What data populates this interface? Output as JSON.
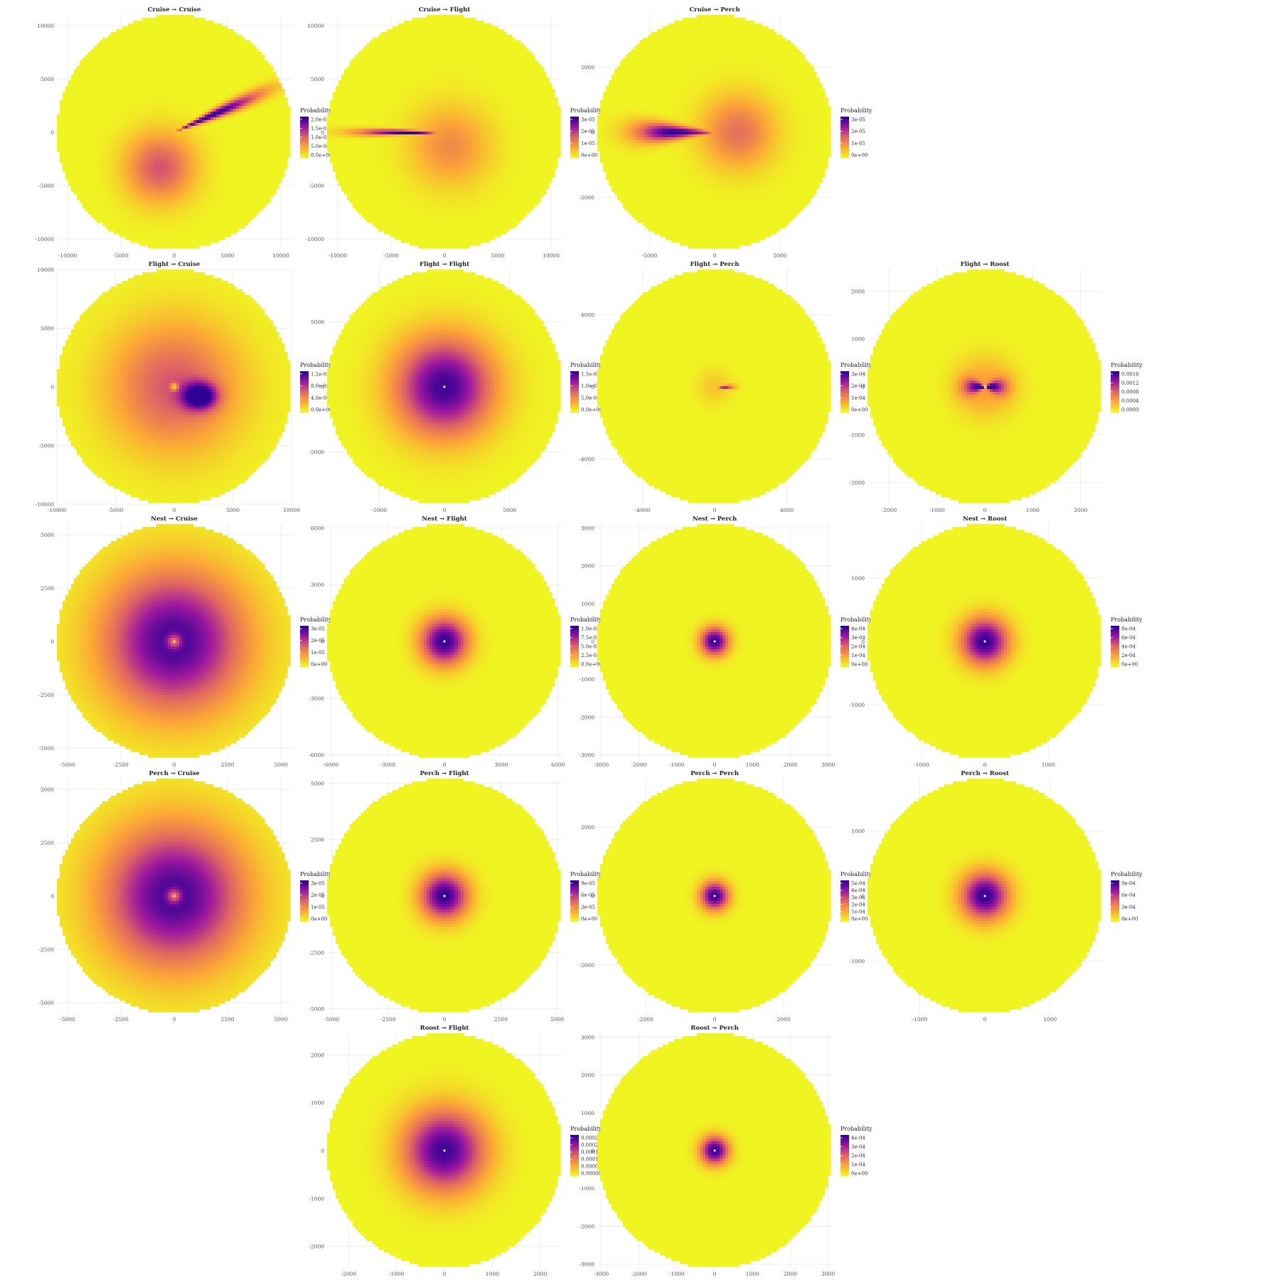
{
  "legend_title": "Probability",
  "chart_data": [
    {
      "type": "heatmap",
      "title": "Cruise → Cruise",
      "row": 0,
      "col": 0,
      "xticks": [
        "-10000",
        "-5000",
        "0",
        "5000",
        "10000"
      ],
      "yticks": [
        "10000",
        "5000",
        "0",
        "-5000",
        "-10000"
      ],
      "xlim": [
        -11000,
        11000
      ],
      "ylim": [
        -11000,
        11000
      ],
      "radius": 11000,
      "legend_ticks": [
        "2.0e-05",
        "1.5e-05",
        "1.0e-05",
        "5.0e-06",
        "0.0e+00"
      ],
      "pattern": "cruise_cruise"
    },
    {
      "type": "heatmap",
      "title": "Cruise → Flight",
      "row": 0,
      "col": 1,
      "xticks": [
        "-10000",
        "-5000",
        "0",
        "5000",
        "10000"
      ],
      "yticks": [
        "10000",
        "5000",
        "0",
        "-5000",
        "-10000"
      ],
      "xlim": [
        -11000,
        11000
      ],
      "ylim": [
        -11000,
        11000
      ],
      "radius": 11000,
      "legend_ticks": [
        "3e-05",
        "2e-05",
        "1e-05",
        "0e+00"
      ],
      "pattern": "cruise_flight"
    },
    {
      "type": "heatmap",
      "title": "Cruise → Perch",
      "row": 0,
      "col": 2,
      "xticks": [
        "-5000",
        "0",
        "5000"
      ],
      "yticks": [
        "5000",
        "0",
        "-5000"
      ],
      "xlim": [
        -9000,
        9000
      ],
      "ylim": [
        -9000,
        9000
      ],
      "radius": 9000,
      "legend_ticks": [
        "3e-05",
        "2e-05",
        "1e-05",
        "0e+00"
      ],
      "pattern": "cruise_perch"
    },
    {
      "type": "heatmap",
      "title": "Flight → Cruise",
      "row": 1,
      "col": 0,
      "xticks": [
        "-10000",
        "-5000",
        "0",
        "5000",
        "10000"
      ],
      "yticks": [
        "10000",
        "5000",
        "0",
        "-5000",
        "-10000"
      ],
      "xlim": [
        -10000,
        10000
      ],
      "ylim": [
        -10000,
        10000
      ],
      "radius": 10000,
      "legend_ticks": [
        "1.2e-05",
        "8.0e-06",
        "4.0e-06",
        "0.0e+00"
      ],
      "pattern": "flight_cruise"
    },
    {
      "type": "heatmap",
      "title": "Flight → Flight",
      "row": 1,
      "col": 1,
      "xticks": [
        "-5000",
        "0",
        "5000"
      ],
      "yticks": [
        "5000",
        "0",
        "-5000"
      ],
      "xlim": [
        -9000,
        9000
      ],
      "ylim": [
        -9000,
        9000
      ],
      "radius": 9000,
      "legend_ticks": [
        "1.5e-05",
        "1.0e-05",
        "5.0e-06",
        "0.0e+00"
      ],
      "pattern": "flight_flight"
    },
    {
      "type": "heatmap",
      "title": "Flight → Perch",
      "row": 1,
      "col": 2,
      "xticks": [
        "-4000",
        "0",
        "4000"
      ],
      "yticks": [
        "4000",
        "0",
        "-4000"
      ],
      "xlim": [
        -6500,
        6500
      ],
      "ylim": [
        -6500,
        6500
      ],
      "radius": 6500,
      "legend_ticks": [
        "3e-04",
        "2e-04",
        "1e-04",
        "0e+00"
      ],
      "pattern": "flight_perch"
    },
    {
      "type": "heatmap",
      "title": "Flight → Roost",
      "row": 1,
      "col": 3,
      "xticks": [
        "-2000",
        "-1000",
        "0",
        "1000",
        "2000"
      ],
      "yticks": [
        "2000",
        "1000",
        "0",
        "-1000",
        "-2000"
      ],
      "xlim": [
        -2450,
        2450
      ],
      "ylim": [
        -2450,
        2450
      ],
      "radius": 2450,
      "legend_ticks": [
        "0.0016",
        "0.0012",
        "0.0008",
        "0.0004",
        "0.0000"
      ],
      "pattern": "flight_roost"
    },
    {
      "type": "heatmap",
      "title": "Nest → Cruise",
      "row": 2,
      "col": 0,
      "xticks": [
        "-5000",
        "-2500",
        "0",
        "2500",
        "5000"
      ],
      "yticks": [
        "5000",
        "2500",
        "0",
        "-2500",
        "-5000"
      ],
      "xlim": [
        -5500,
        5500
      ],
      "ylim": [
        -5500,
        5500
      ],
      "radius": 5500,
      "legend_ticks": [
        "3e-05",
        "2e-05",
        "1e-05",
        "0e+00"
      ],
      "pattern": "nest_cruise"
    },
    {
      "type": "heatmap",
      "title": "Nest → Flight",
      "row": 2,
      "col": 1,
      "xticks": [
        "-6000",
        "-3000",
        "0",
        "3000",
        "6000"
      ],
      "yticks": [
        "6000",
        "3000",
        "0",
        "-3000",
        "-6000"
      ],
      "xlim": [
        -6200,
        6200
      ],
      "ylim": [
        -6200,
        6200
      ],
      "radius": 6200,
      "legend_ticks": [
        "1.0e-04",
        "7.5e-05",
        "5.0e-05",
        "2.5e-05",
        "0.0e+00"
      ],
      "pattern": "center"
    },
    {
      "type": "heatmap",
      "title": "Nest → Perch",
      "row": 2,
      "col": 2,
      "xticks": [
        "-3000",
        "-2000",
        "-1000",
        "0",
        "1000",
        "2000",
        "3000"
      ],
      "yticks": [
        "3000",
        "2000",
        "1000",
        "0",
        "-1000",
        "-2000",
        "-3000"
      ],
      "xlim": [
        -3100,
        3100
      ],
      "ylim": [
        -3100,
        3100
      ],
      "radius": 3100,
      "legend_ticks": [
        "4e-04",
        "3e-04",
        "2e-04",
        "1e-04",
        "0e+00"
      ],
      "pattern": "center_small"
    },
    {
      "type": "heatmap",
      "title": "Nest → Roost",
      "row": 2,
      "col": 3,
      "xticks": [
        "-1000",
        "0",
        "1000"
      ],
      "yticks": [
        "1000",
        "0",
        "-1000"
      ],
      "xlim": [
        -1850,
        1850
      ],
      "ylim": [
        -1850,
        1850
      ],
      "radius": 1850,
      "legend_ticks": [
        "8e-04",
        "6e-04",
        "4e-04",
        "2e-04",
        "0e+00"
      ],
      "pattern": "center"
    },
    {
      "type": "heatmap",
      "title": "Perch → Cruise",
      "row": 3,
      "col": 0,
      "xticks": [
        "-5000",
        "-2500",
        "0",
        "2500",
        "5000"
      ],
      "yticks": [
        "5000",
        "2500",
        "0",
        "-2500",
        "-5000"
      ],
      "xlim": [
        -5500,
        5500
      ],
      "ylim": [
        -5500,
        5500
      ],
      "radius": 5500,
      "legend_ticks": [
        "3e-05",
        "2e-05",
        "1e-05",
        "0e+00"
      ],
      "pattern": "nest_cruise"
    },
    {
      "type": "heatmap",
      "title": "Perch → Flight",
      "row": 3,
      "col": 1,
      "xticks": [
        "-5000",
        "-2500",
        "0",
        "2500",
        "5000"
      ],
      "yticks": [
        "5000",
        "2500",
        "0",
        "-2500",
        "-5000"
      ],
      "xlim": [
        -5200,
        5200
      ],
      "ylim": [
        -5200,
        5200
      ],
      "radius": 5200,
      "legend_ticks": [
        "9e-05",
        "6e-05",
        "3e-05",
        "0e+00"
      ],
      "pattern": "center"
    },
    {
      "type": "heatmap",
      "title": "Perch → Perch",
      "row": 3,
      "col": 2,
      "xticks": [
        "-2000",
        "0",
        "2000"
      ],
      "yticks": [
        "2000",
        "0",
        "-2000"
      ],
      "xlim": [
        -3400,
        3400
      ],
      "ylim": [
        -3400,
        3400
      ],
      "radius": 3400,
      "legend_ticks": [
        "5e-04",
        "4e-04",
        "3e-04",
        "2e-04",
        "1e-04",
        "0e+00"
      ],
      "pattern": "center_small"
    },
    {
      "type": "heatmap",
      "title": "Perch → Roost",
      "row": 3,
      "col": 3,
      "xticks": [
        "-1000",
        "0",
        "1000"
      ],
      "yticks": [
        "1000",
        "0",
        "-1000"
      ],
      "xlim": [
        -1800,
        1800
      ],
      "ylim": [
        -1800,
        1800
      ],
      "radius": 1800,
      "legend_ticks": [
        "9e-04",
        "6e-04",
        "3e-04",
        "0e+00"
      ],
      "pattern": "center"
    },
    {
      "type": "heatmap",
      "title": "Roost → Flight",
      "row": 4,
      "col": 1,
      "xticks": [
        "-2000",
        "-1000",
        "0",
        "1000",
        "2000"
      ],
      "yticks": [
        "2000",
        "1000",
        "0",
        "-1000",
        "-2000"
      ],
      "xlim": [
        -2450,
        2450
      ],
      "ylim": [
        -2450,
        2450
      ],
      "radius": 2450,
      "legend_ticks": [
        "0.00025",
        "0.00020",
        "0.00015",
        "0.00010",
        "0.00005",
        "0.00000"
      ],
      "pattern": "roost_flight"
    },
    {
      "type": "heatmap",
      "title": "Roost → Perch",
      "row": 4,
      "col": 2,
      "xticks": [
        "-3000",
        "-2000",
        "-1000",
        "0",
        "1000",
        "2000",
        "3000"
      ],
      "yticks": [
        "3000",
        "2000",
        "1000",
        "0",
        "-1000",
        "-2000",
        "-3000"
      ],
      "xlim": [
        -3100,
        3100
      ],
      "ylim": [
        -3100,
        3100
      ],
      "radius": 3100,
      "legend_ticks": [
        "4e-04",
        "3e-04",
        "2e-04",
        "1e-04",
        "0e+00"
      ],
      "pattern": "center_small"
    }
  ]
}
